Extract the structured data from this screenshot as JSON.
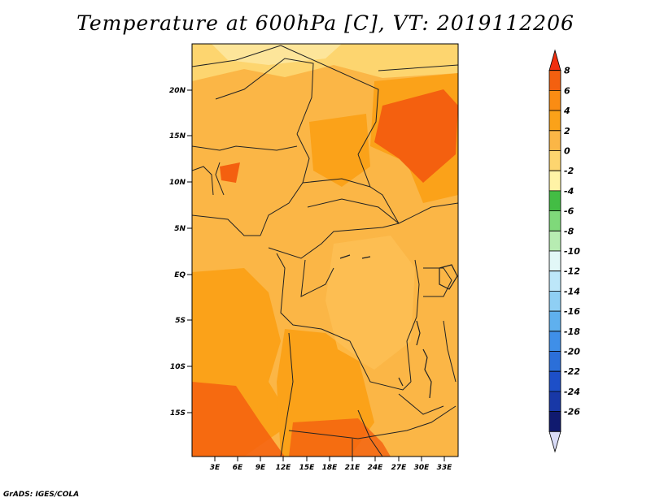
{
  "title": "Temperature at 600hPa [C], VT: 2019112206",
  "credit": "GrADS: IGES/COLA",
  "map": {
    "lon_ticks": [
      "3E",
      "6E",
      "9E",
      "12E",
      "15E",
      "18E",
      "21E",
      "24E",
      "27E",
      "30E",
      "33E"
    ],
    "lat_ticks": [
      "20N",
      "15N",
      "10N",
      "5N",
      "EQ",
      "5S",
      "10S",
      "15S"
    ],
    "background_color": "#fbb646"
  },
  "colorbar": {
    "labels": [
      "8",
      "6",
      "4",
      "2",
      "0",
      "-2",
      "-4",
      "-6",
      "-8",
      "-10",
      "-12",
      "-14",
      "-16",
      "-18",
      "-20",
      "-22",
      "-24",
      "-26"
    ],
    "colors": [
      "#f02e0e",
      "#f4600f",
      "#fa8c13",
      "#fba219",
      "#fbb646",
      "#fdd56f",
      "#fff3a6",
      "#43bd44",
      "#7fd97a",
      "#b7ecb2",
      "#e2f7f7",
      "#bde7f9",
      "#8fcff4",
      "#5fb0ee",
      "#3f8fe8",
      "#2b6fd9",
      "#1d4fc8",
      "#1838a7",
      "#101a6f",
      "#d9dcf7"
    ]
  }
}
